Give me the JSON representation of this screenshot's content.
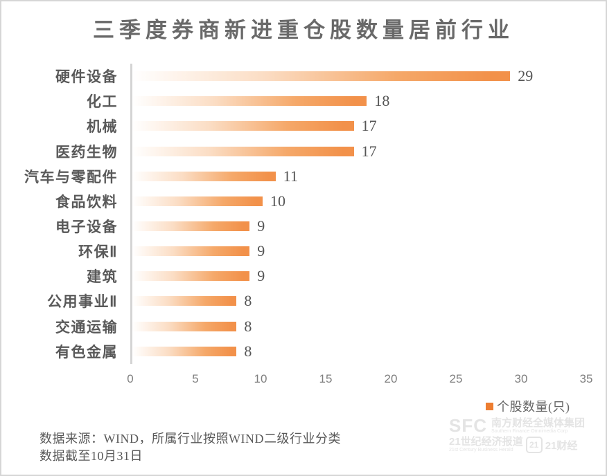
{
  "title": "三季度券商新进重仓股数量居前行业",
  "chart_data": {
    "type": "bar",
    "orientation": "horizontal",
    "title": "三季度券商新进重仓股数量居前行业",
    "categories": [
      "硬件设备",
      "化工",
      "机械",
      "医药生物",
      "汽车与零配件",
      "食品饮料",
      "电子设备",
      "环保Ⅱ",
      "建筑",
      "公用事业Ⅱ",
      "交通运输",
      "有色金属"
    ],
    "values": [
      29,
      18,
      17,
      17,
      11,
      10,
      9,
      9,
      9,
      8,
      8,
      8
    ],
    "xlabel": "",
    "ylabel": "",
    "xlim": [
      0,
      35
    ],
    "xticks": [
      0,
      5,
      10,
      15,
      20,
      25,
      30,
      35
    ],
    "grid": false,
    "data_labels": true,
    "legend_entries": [
      "个股数量(只)"
    ],
    "legend_position": "bottom-right",
    "bar_gradient_start": "#FFFFFF",
    "bar_gradient_end": "#F2914A"
  },
  "legend": {
    "label": "个股数量(只)",
    "swatch_color": "#ED7D31"
  },
  "footer": {
    "line1": "数据来源：WIND，所属行业按照WIND二级行业分类",
    "line2": "数据截至10月31日"
  },
  "watermark": {
    "sfc": "SFC",
    "group_cn": "南方财经全媒体集团",
    "group_en": "Southern Finance Omnimedia Corp",
    "herald_cn": "21世纪经济报道",
    "herald_en": "21st Century Business Herald",
    "badge": "21",
    "brand_cn": "21财经"
  },
  "colors": {
    "title_text": "#696969",
    "category_text": "#595959",
    "value_text": "#555555",
    "tick_text": "#7F7F7F",
    "axis_line": "#D4D4D4",
    "footer_text": "#595959",
    "canvas_border": "#D6D6D6"
  }
}
